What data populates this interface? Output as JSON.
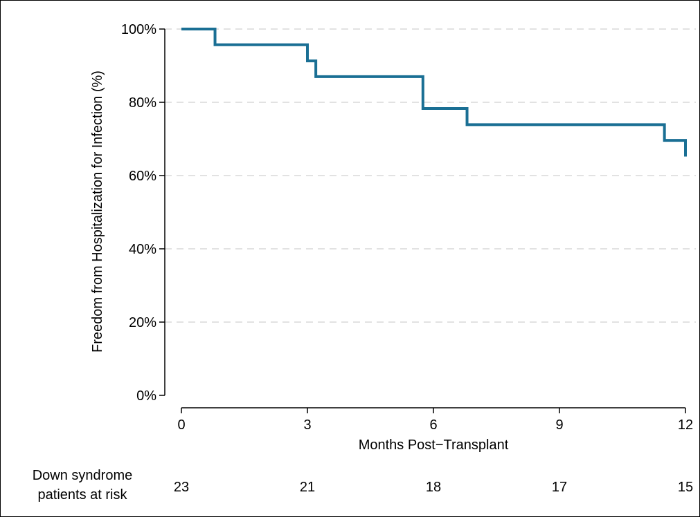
{
  "chart_data": {
    "type": "line",
    "step": true,
    "title": "",
    "xlabel": "Months Post−Transplant",
    "ylabel": "Freedom from Hospitalization for Infection (%)",
    "xlim": [
      0,
      12
    ],
    "ylim": [
      0,
      100
    ],
    "x_ticks": [
      0,
      3,
      6,
      9,
      12
    ],
    "x_tick_labels": [
      "0",
      "3",
      "6",
      "9",
      "12"
    ],
    "y_ticks": [
      0,
      20,
      40,
      60,
      80,
      100
    ],
    "y_tick_labels": [
      "0%",
      "20%",
      "40%",
      "60%",
      "80%",
      "100%"
    ],
    "grid": "horizontal-dashed",
    "line_color": "#1a6f94",
    "series": [
      {
        "x": [
          0,
          0.8,
          3.0,
          3.2,
          5.75,
          6.8,
          11.5,
          12.0
        ],
        "y": [
          100,
          95.7,
          91.3,
          87.0,
          78.3,
          73.9,
          69.6,
          65.2
        ]
      }
    ],
    "risk_table": {
      "label_lines": [
        "Down syndrome",
        "patients at risk"
      ],
      "x": [
        0,
        3,
        6,
        9,
        12
      ],
      "values": [
        "23",
        "21",
        "18",
        "17",
        "15"
      ]
    }
  }
}
